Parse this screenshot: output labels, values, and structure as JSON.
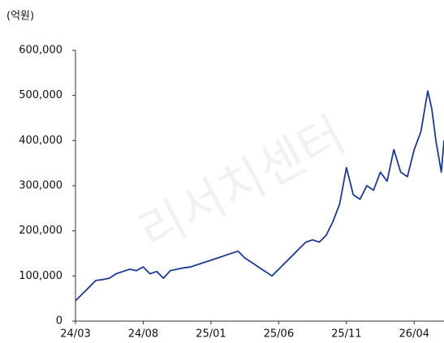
{
  "chart_data": {
    "type": "line",
    "unit_label": "(억원)",
    "watermark": "리서치센터",
    "x": [
      0,
      0.5,
      1,
      1.5,
      2,
      2.5,
      3,
      3.5,
      4,
      4.5,
      5,
      5.5,
      6,
      6.5,
      7,
      7.5,
      8,
      8.5,
      9,
      9.5,
      10,
      10.5,
      11,
      11.5,
      12,
      12.5,
      13,
      13.5,
      14,
      14.5,
      15,
      15.5,
      16,
      16.5,
      17,
      17.5,
      18,
      18.5,
      19,
      19.5,
      20,
      20.5,
      21,
      21.5,
      22,
      22.5,
      23,
      23.5,
      24,
      24.5,
      25,
      25.5,
      26,
      26.3,
      26.6,
      27,
      27.2
    ],
    "series": [
      {
        "name": "value",
        "color": "#1c3a94",
        "values": [
          45000,
          60000,
          75000,
          90000,
          92000,
          95000,
          105000,
          110000,
          115000,
          112000,
          120000,
          105000,
          110000,
          95000,
          112000,
          115000,
          118000,
          120000,
          125000,
          130000,
          135000,
          140000,
          145000,
          150000,
          155000,
          140000,
          130000,
          120000,
          110000,
          100000,
          115000,
          130000,
          145000,
          160000,
          175000,
          180000,
          175000,
          190000,
          220000,
          260000,
          340000,
          280000,
          270000,
          300000,
          290000,
          330000,
          310000,
          380000,
          330000,
          320000,
          380000,
          420000,
          510000,
          470000,
          400000,
          330000,
          400000
        ]
      }
    ],
    "xlim": [
      0,
      27.2
    ],
    "xticks": [
      {
        "value": 0,
        "label": "24/03"
      },
      {
        "value": 5,
        "label": "24/08"
      },
      {
        "value": 10,
        "label": "25/01"
      },
      {
        "value": 15,
        "label": "25/06"
      },
      {
        "value": 20,
        "label": "25/11"
      },
      {
        "value": 25,
        "label": "26/04"
      }
    ],
    "ylim": [
      0,
      600000
    ],
    "yticks": [
      0,
      {
        "value": 100000,
        "label": "100,000"
      },
      {
        "value": 200000,
        "label": "200,000"
      },
      {
        "value": 300000,
        "label": "300,000"
      },
      {
        "value": 400000,
        "label": "400,000"
      },
      {
        "value": 500000,
        "label": "500,000"
      },
      {
        "value": 600000,
        "label": "600,000"
      }
    ],
    "grid": false
  }
}
